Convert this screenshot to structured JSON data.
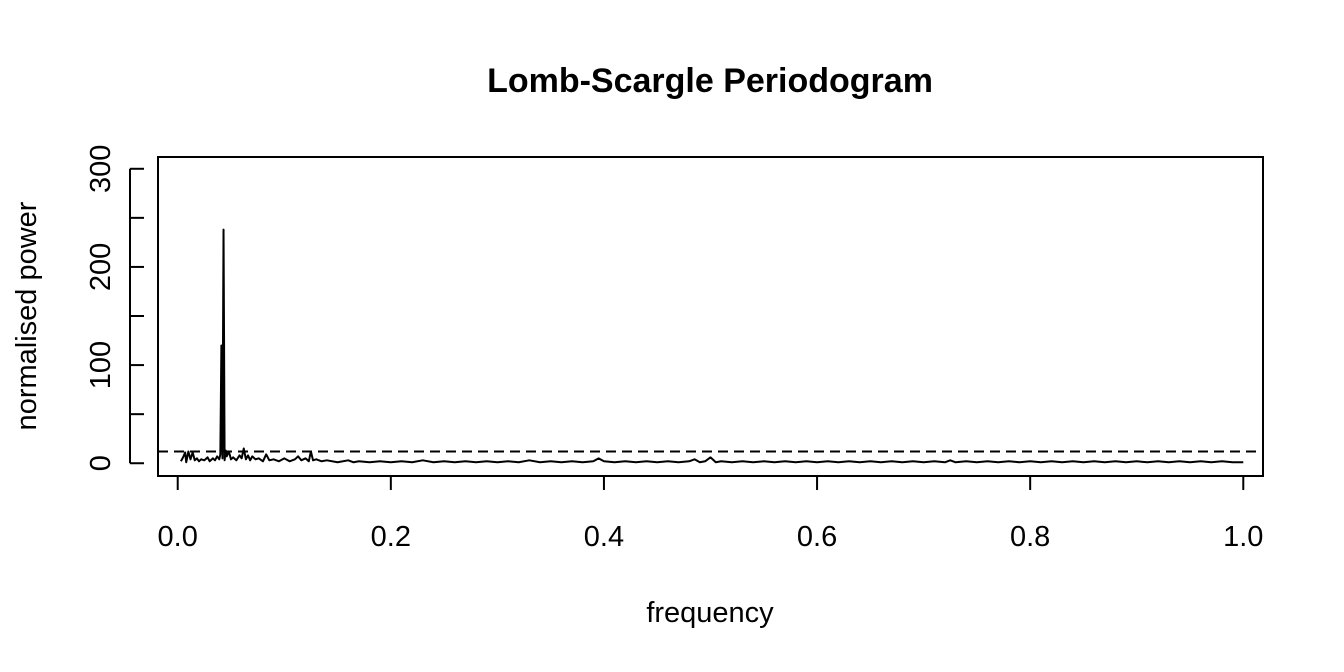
{
  "chart_data": {
    "type": "line",
    "title": "Lomb-Scargle Periodogram",
    "xlabel": "frequency",
    "ylabel": "normalised power",
    "xlim": [
      -0.0185,
      1.0185
    ],
    "ylim": [
      -13,
      312
    ],
    "x_ticks": [
      0.0,
      0.2,
      0.4,
      0.6,
      0.8,
      1.0
    ],
    "x_tick_labels": [
      "0.0",
      "0.2",
      "0.4",
      "0.6",
      "0.8",
      "1.0"
    ],
    "y_ticks": [
      0,
      50,
      100,
      150,
      200,
      250,
      300
    ],
    "y_tick_labels": [
      "0",
      "",
      "100",
      "",
      "200",
      "",
      "300"
    ],
    "grid": false,
    "legend": "none",
    "threshold": {
      "y": 12,
      "style": "dashed"
    },
    "series": [
      {
        "x": [
          0.003,
          0.005,
          0.007,
          0.008,
          0.01,
          0.012,
          0.014,
          0.016,
          0.018,
          0.02,
          0.022,
          0.025,
          0.028,
          0.03,
          0.033,
          0.035,
          0.037,
          0.039,
          0.04,
          0.041,
          0.042,
          0.043,
          0.044,
          0.045,
          0.046,
          0.048,
          0.05,
          0.052,
          0.055,
          0.058,
          0.06,
          0.062,
          0.064,
          0.066,
          0.068,
          0.07,
          0.073,
          0.076,
          0.08,
          0.083,
          0.086,
          0.09,
          0.095,
          0.1,
          0.105,
          0.11,
          0.113,
          0.116,
          0.12,
          0.123,
          0.125,
          0.127,
          0.13,
          0.135,
          0.14,
          0.15,
          0.16,
          0.165,
          0.17,
          0.18,
          0.19,
          0.2,
          0.21,
          0.22,
          0.23,
          0.24,
          0.25,
          0.26,
          0.27,
          0.28,
          0.29,
          0.3,
          0.31,
          0.32,
          0.33,
          0.34,
          0.35,
          0.36,
          0.37,
          0.38,
          0.39,
          0.395,
          0.4,
          0.41,
          0.42,
          0.43,
          0.44,
          0.45,
          0.46,
          0.47,
          0.48,
          0.485,
          0.49,
          0.495,
          0.5,
          0.505,
          0.51,
          0.52,
          0.53,
          0.54,
          0.55,
          0.56,
          0.57,
          0.58,
          0.59,
          0.6,
          0.61,
          0.62,
          0.63,
          0.64,
          0.65,
          0.66,
          0.67,
          0.68,
          0.69,
          0.7,
          0.71,
          0.72,
          0.725,
          0.73,
          0.74,
          0.75,
          0.76,
          0.77,
          0.78,
          0.79,
          0.8,
          0.81,
          0.82,
          0.83,
          0.84,
          0.85,
          0.86,
          0.87,
          0.88,
          0.89,
          0.9,
          0.91,
          0.92,
          0.93,
          0.94,
          0.95,
          0.96,
          0.97,
          0.98,
          0.99,
          1.0
        ],
        "y": [
          2,
          6,
          11,
          1,
          12,
          4,
          11,
          3,
          5,
          2,
          4,
          3,
          6,
          2,
          5,
          3,
          7,
          4,
          9,
          120,
          5,
          238,
          3,
          13,
          7,
          12,
          4,
          6,
          3,
          8,
          5,
          15,
          4,
          8,
          3,
          7,
          4,
          5,
          2,
          9,
          3,
          4,
          2,
          5,
          2,
          4,
          7,
          3,
          5,
          2,
          12,
          3,
          4,
          2,
          3,
          1,
          3,
          1,
          2,
          1,
          2,
          1,
          2,
          1,
          3,
          1,
          2,
          1,
          2,
          1,
          2,
          1,
          2,
          1,
          3,
          1,
          2,
          1,
          2,
          1,
          2,
          5,
          2,
          1,
          2,
          1,
          2,
          1,
          2,
          1,
          2,
          4,
          1,
          2,
          6,
          1,
          2,
          1,
          2,
          1,
          2,
          1,
          2,
          1,
          2,
          1,
          2,
          1,
          2,
          1,
          2,
          1,
          2,
          1,
          2,
          1,
          2,
          1,
          3,
          1,
          2,
          1,
          2,
          1,
          2,
          1,
          2,
          1,
          2,
          1,
          2,
          1,
          2,
          1,
          2,
          1,
          2,
          1,
          2,
          1,
          2,
          1,
          2,
          1,
          2,
          1,
          1
        ]
      }
    ]
  }
}
